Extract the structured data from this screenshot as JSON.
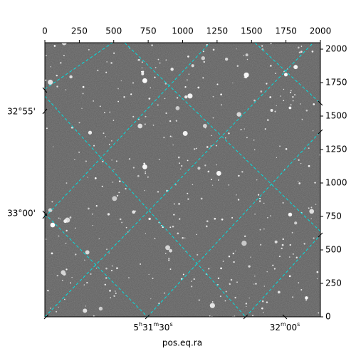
{
  "chart_data": {
    "type": "image",
    "xlabel": "pos.eq.ra",
    "xlim": [
      0,
      2000
    ],
    "xticks": [
      0,
      250,
      500,
      750,
      1000,
      1250,
      1500,
      1750,
      2000
    ],
    "ylim": [
      0,
      2048
    ],
    "yticks": [
      0,
      250,
      500,
      750,
      1000,
      1250,
      1500,
      1750,
      2000
    ],
    "dec_labels": [
      "32°55'",
      "33°00'"
    ],
    "ra_labels": [
      [
        "5",
        "h",
        "31",
        "m",
        "30",
        "s"
      ],
      [
        "32",
        "m",
        "00",
        "s"
      ]
    ],
    "grid_color": "#00e0e0"
  }
}
